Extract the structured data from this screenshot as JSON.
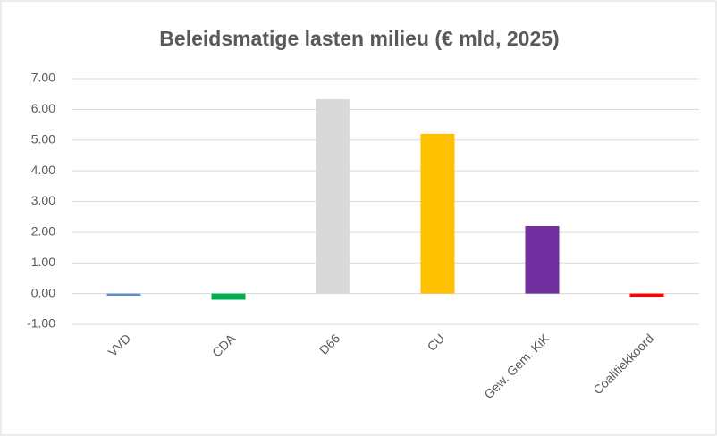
{
  "chart_data": {
    "type": "bar",
    "title": "Beleidsmatige lasten milieu (€ mld, 2025)",
    "categories": [
      "VVD",
      "CDA",
      "D66",
      "CU",
      "Gew. Gem. KiK",
      "Coalitiekkoord"
    ],
    "values": [
      -0.07,
      -0.2,
      6.33,
      5.2,
      2.2,
      -0.1
    ],
    "colors": [
      "#5b8bd0",
      "#00b050",
      "#d9d9d9",
      "#ffc000",
      "#7030a0",
      "#ff0000"
    ],
    "ylim": [
      -1,
      7
    ],
    "yticks": [
      {
        "value": -1,
        "label": "-1.00"
      },
      {
        "value": 0,
        "label": "0.00"
      },
      {
        "value": 1,
        "label": "1.00"
      },
      {
        "value": 2,
        "label": "2.00"
      },
      {
        "value": 3,
        "label": "3.00"
      },
      {
        "value": 4,
        "label": "4.00"
      },
      {
        "value": 5,
        "label": "5.00"
      },
      {
        "value": 6,
        "label": "6.00"
      },
      {
        "value": 7,
        "label": "7.00"
      }
    ],
    "grid": true
  }
}
